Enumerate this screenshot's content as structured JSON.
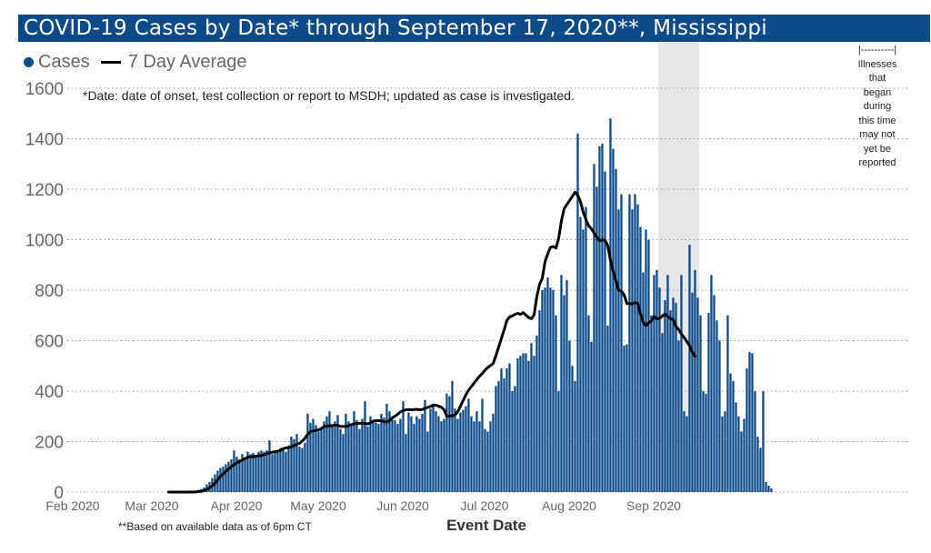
{
  "title": "COVID-19 Cases by Date* through September 17, 2020**, Mississippi",
  "legend": {
    "cases": "Cases",
    "avg": "7 Day Average"
  },
  "footnote": "*Date: date of onset, test collection or report to MSDH; updated as case is investigated.",
  "footer_note": "**Based on available data as of 6pm CT",
  "shaded_note": [
    "|----------|",
    "Illnesses",
    "that",
    "began",
    "during",
    "this time",
    "may not",
    "yet be",
    "reported"
  ],
  "colors": {
    "bar": "#0d4a8a",
    "avg_line": "#000000",
    "title_bg": "#0d4a8a",
    "shade": "#e6e6e6",
    "grid": "#999999"
  },
  "chart_data": {
    "type": "bar",
    "title": "COVID-19 Cases by Date* through September 17, 2020**, Mississippi",
    "xlabel": "Event Date",
    "ylabel": "",
    "ylim": [
      0,
      1600
    ],
    "yticks": [
      0,
      200,
      400,
      600,
      800,
      1000,
      1200,
      1400,
      1600
    ],
    "xticks": [
      "Feb 2020",
      "Mar 2020",
      "Apr 2020",
      "May 2020",
      "Jun 2020",
      "Jul 2020",
      "Aug 2020",
      "Sep 2020"
    ],
    "x_start": "2020-02-01",
    "grid": true,
    "shaded_range": [
      "2020-09-03",
      "2020-09-17"
    ],
    "series": [
      {
        "name": "Cases",
        "kind": "bar",
        "values": [
          0,
          0,
          0,
          0,
          0,
          0,
          0,
          0,
          0,
          0,
          0,
          0,
          0,
          0,
          0,
          0,
          0,
          0,
          0,
          0,
          0,
          0,
          0,
          0,
          0,
          0,
          0,
          0,
          0,
          0,
          0,
          0,
          0,
          0,
          0,
          0,
          0,
          0,
          0,
          0,
          0,
          0,
          0,
          2,
          3,
          5,
          8,
          12,
          18,
          30,
          40,
          55,
          70,
          85,
          95,
          100,
          110,
          120,
          130,
          165,
          140,
          130,
          150,
          130,
          160,
          150,
          155,
          140,
          160,
          165,
          160,
          165,
          205,
          150,
          155,
          165,
          175,
          170,
          160,
          185,
          220,
          210,
          230,
          180,
          175,
          195,
          310,
          275,
          290,
          265,
          240,
          250,
          280,
          300,
          320,
          265,
          280,
          305,
          250,
          230,
          310,
          280,
          270,
          320,
          285,
          250,
          290,
          360,
          260,
          300,
          280,
          275,
          270,
          310,
          295,
          350,
          320,
          300,
          285,
          270,
          290,
          360,
          230,
          315,
          300,
          270,
          300,
          290,
          310,
          365,
          240,
          330,
          350,
          320,
          300,
          280,
          290,
          390,
          380,
          440,
          330,
          290,
          315,
          325,
          340,
          370,
          300,
          280,
          320,
          280,
          370,
          250,
          240,
          280,
          310,
          420,
          440,
          490,
          450,
          490,
          510,
          400,
          420,
          530,
          540,
          550,
          550,
          520,
          590,
          540,
          620,
          720,
          800,
          810,
          850,
          810,
          800,
          700,
          400,
          860,
          780,
          840,
          600,
          500,
          440,
          1420,
          1090,
          1040,
          1130,
          700,
          595,
          1300,
          1210,
          1370,
          1380,
          1270,
          660,
          1480,
          1360,
          1280,
          1120,
          1180,
          580,
          585,
          1180,
          1120,
          1180,
          1140,
          1050,
          870,
          1040,
          1000,
          700,
          860,
          880,
          810,
          630,
          760,
          860,
          720,
          770,
          750,
          600,
          860,
          320,
          300,
          980,
          790,
          880,
          770,
          700,
          400,
          390,
          710,
          860,
          780,
          680,
          600,
          300,
          320,
          700,
          470,
          440,
          355,
          300,
          240,
          290,
          490,
          555,
          550,
          400,
          220,
          175,
          400,
          40,
          25,
          15
        ]
      },
      {
        "name": "7 Day Average",
        "kind": "line",
        "start_day": 35,
        "values": [
          0,
          0,
          0,
          0,
          0,
          0,
          0,
          0,
          0,
          0,
          1,
          2,
          3,
          6,
          10,
          17,
          25,
          35,
          49,
          62,
          72,
          82,
          91,
          101,
          109,
          116,
          122,
          127,
          133,
          138,
          141,
          140,
          142,
          144,
          144,
          148,
          153,
          155,
          158,
          160,
          162,
          165,
          172,
          175,
          175,
          180,
          185,
          189,
          193,
          202,
          214,
          229,
          240,
          242,
          244,
          247,
          252,
          260,
          261,
          263,
          263,
          266,
          264,
          260,
          260,
          260,
          263,
          267,
          270,
          272,
          272,
          272,
          272,
          270,
          275,
          281,
          283,
          283,
          282,
          278,
          278,
          283,
          294,
          301,
          309,
          318,
          323,
          326,
          327,
          326,
          327,
          328,
          326,
          327,
          333,
          335,
          339,
          344,
          344,
          340,
          336,
          326,
          299,
          302,
          302,
          306,
          318,
          341,
          364,
          386,
          404,
          418,
          432,
          446,
          459,
          470,
          483,
          494,
          501,
          510,
          541,
          575,
          609,
          643,
          680,
          694,
          698,
          704,
          708,
          704,
          711,
          701,
          691,
          687,
          703,
          776,
          823,
          847,
          913,
          944,
          970,
          973,
          967,
          1006,
          1075,
          1123,
          1139,
          1155,
          1171,
          1188,
          1175,
          1150,
          1108,
          1079,
          1055,
          1043,
          1026,
          1010,
          995,
          1000,
          997,
          976,
          918,
          873,
          836,
          799,
          796,
          781,
          747,
          747,
          745,
          750,
          747,
          705,
          673,
          659,
          671,
          678,
          696,
          686,
          689,
          697,
          706,
          695,
          688,
          682,
          657,
          644,
          626,
          612,
          596,
          580,
          554,
          538
        ]
      }
    ]
  }
}
